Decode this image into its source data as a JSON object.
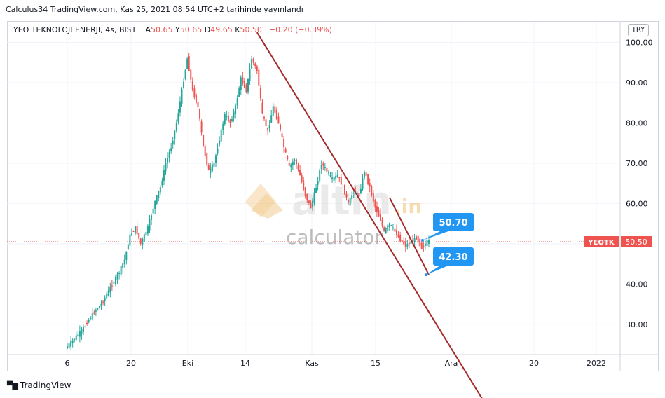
{
  "header": {
    "title": "Calculus34 TradingView.com, Kas 25, 2021 08:54 UTC+2 tarihinde yayınlandı"
  },
  "legend": {
    "symbol": "YEO TEKNOLOJI ENERJI, 4s, BIST",
    "open_label": "A",
    "open": "50.65",
    "high_label": "Y",
    "high": "50.65",
    "low_label": "D",
    "low": "49.65",
    "close_label": "K",
    "close": "50.50",
    "change": "−0.20 (−0.39%)"
  },
  "currency": "TRY",
  "price_tag": {
    "symbol": "YEOTK",
    "value": "50.50"
  },
  "watermark": {
    "brand": "altin",
    "suffix": ".in",
    "sub": "calculator"
  },
  "footer": {
    "brand_icon": "tradingview-logo-icon",
    "brand": "TradingView"
  },
  "colors": {
    "up": "#26a69a",
    "down": "#ef5350",
    "trend": "#a52a2a",
    "callout": "#2196f3",
    "price_line": "#ef5350"
  },
  "chart_data": {
    "type": "candlestick",
    "y_range": [
      22,
      104
    ],
    "y_ticks": [
      100,
      90,
      80,
      70,
      60,
      50,
      40,
      30
    ],
    "y_tick_labels": [
      "100.00",
      "90.00",
      "80.00",
      "70.00",
      "60.00",
      "50.00",
      "40.00",
      "30.00"
    ],
    "x_ticks": [
      "6",
      "20",
      "Eki",
      "14",
      "Kas",
      "15",
      "Ara",
      "20",
      "2022"
    ],
    "last_price": 50.5,
    "grid": true,
    "callouts": [
      {
        "label": "50.70",
        "value": 50.7
      },
      {
        "label": "42.30",
        "value": 42.3
      }
    ],
    "trendlines": [
      {
        "name": "upper",
        "from": {
          "bar": 212,
          "price": 102.5
        },
        "to": {
          "bar": 400,
          "price": 34.5
        }
      },
      {
        "name": "lower",
        "from": {
          "bar": 360,
          "price": 61.5
        },
        "to": {
          "bar": 404,
          "price": 42.3
        }
      }
    ],
    "segments": [
      {
        "bar": 0,
        "price": 24
      },
      {
        "bar": 10,
        "price": 26.5
      },
      {
        "bar": 20,
        "price": 29
      },
      {
        "bar": 30,
        "price": 32.5
      },
      {
        "bar": 40,
        "price": 35
      },
      {
        "bar": 50,
        "price": 39
      },
      {
        "bar": 60,
        "price": 43
      },
      {
        "bar": 66,
        "price": 46
      },
      {
        "bar": 72,
        "price": 52
      },
      {
        "bar": 78,
        "price": 54
      },
      {
        "bar": 84,
        "price": 50
      },
      {
        "bar": 92,
        "price": 54
      },
      {
        "bar": 100,
        "price": 60.5
      },
      {
        "bar": 106,
        "price": 64
      },
      {
        "bar": 112,
        "price": 70
      },
      {
        "bar": 118,
        "price": 74
      },
      {
        "bar": 124,
        "price": 80
      },
      {
        "bar": 130,
        "price": 88
      },
      {
        "bar": 136,
        "price": 96
      },
      {
        "bar": 142,
        "price": 88
      },
      {
        "bar": 148,
        "price": 84
      },
      {
        "bar": 154,
        "price": 74
      },
      {
        "bar": 160,
        "price": 68
      },
      {
        "bar": 166,
        "price": 70
      },
      {
        "bar": 172,
        "price": 76
      },
      {
        "bar": 178,
        "price": 82
      },
      {
        "bar": 184,
        "price": 80
      },
      {
        "bar": 190,
        "price": 84
      },
      {
        "bar": 196,
        "price": 91
      },
      {
        "bar": 202,
        "price": 88
      },
      {
        "bar": 208,
        "price": 96
      },
      {
        "bar": 214,
        "price": 93
      },
      {
        "bar": 220,
        "price": 82
      },
      {
        "bar": 226,
        "price": 78
      },
      {
        "bar": 232,
        "price": 84
      },
      {
        "bar": 238,
        "price": 80
      },
      {
        "bar": 244,
        "price": 74
      },
      {
        "bar": 250,
        "price": 69
      },
      {
        "bar": 256,
        "price": 71
      },
      {
        "bar": 262,
        "price": 67
      },
      {
        "bar": 268,
        "price": 62
      },
      {
        "bar": 274,
        "price": 59
      },
      {
        "bar": 280,
        "price": 64
      },
      {
        "bar": 286,
        "price": 70
      },
      {
        "bar": 292,
        "price": 68
      },
      {
        "bar": 298,
        "price": 66
      },
      {
        "bar": 304,
        "price": 67
      },
      {
        "bar": 310,
        "price": 64
      },
      {
        "bar": 316,
        "price": 60
      },
      {
        "bar": 322,
        "price": 63
      },
      {
        "bar": 328,
        "price": 62
      },
      {
        "bar": 334,
        "price": 68
      },
      {
        "bar": 340,
        "price": 64
      },
      {
        "bar": 346,
        "price": 59
      },
      {
        "bar": 352,
        "price": 56
      },
      {
        "bar": 356,
        "price": 53
      },
      {
        "bar": 362,
        "price": 55
      },
      {
        "bar": 368,
        "price": 53
      },
      {
        "bar": 374,
        "price": 51
      },
      {
        "bar": 380,
        "price": 49.5
      },
      {
        "bar": 386,
        "price": 50.5
      },
      {
        "bar": 392,
        "price": 51.5
      },
      {
        "bar": 398,
        "price": 49
      },
      {
        "bar": 404,
        "price": 50.5
      }
    ],
    "bar_count": 405
  }
}
